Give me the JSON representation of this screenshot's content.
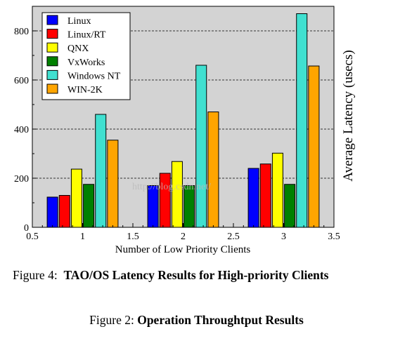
{
  "chart_data": {
    "type": "bar",
    "xlabel": "Number of Low Priority Clients",
    "ylabel": "Average Latency (usecs)",
    "xlim": [
      0.5,
      3.5
    ],
    "ylim": [
      0,
      900
    ],
    "x_ticks": [
      "0.5",
      "1",
      "1.5",
      "2",
      "2.5",
      "3",
      "3.5"
    ],
    "y_ticks": [
      "0",
      "200",
      "400",
      "600",
      "800"
    ],
    "categories": [
      1,
      2,
      3
    ],
    "grid": "horizontal dashed",
    "legend_position": "top-left",
    "series": [
      {
        "name": "Linux",
        "color": "#0000ff",
        "values": [
          123,
          170,
          240
        ]
      },
      {
        "name": "Linux/RT",
        "color": "#ff0000",
        "values": [
          130,
          220,
          258
        ]
      },
      {
        "name": "QNX",
        "color": "#ffff00",
        "values": [
          237,
          268,
          302
        ]
      },
      {
        "name": "VxWorks",
        "color": "#008000",
        "values": [
          175,
          170,
          175
        ]
      },
      {
        "name": "Windows NT",
        "color": "#40e0d0",
        "values": [
          460,
          660,
          870
        ]
      },
      {
        "name": "WIN-2K",
        "color": "#ffa500",
        "values": [
          355,
          470,
          657
        ]
      }
    ]
  },
  "captions": {
    "figure4_label": "Figure 4:",
    "figure4_title": "TAO/OS Latency Results for High-priority Clients",
    "figure2_label": "Figure 2:",
    "figure2_title": "Operation Throughtput Results"
  },
  "watermark": "http://blog.csdn.net/"
}
